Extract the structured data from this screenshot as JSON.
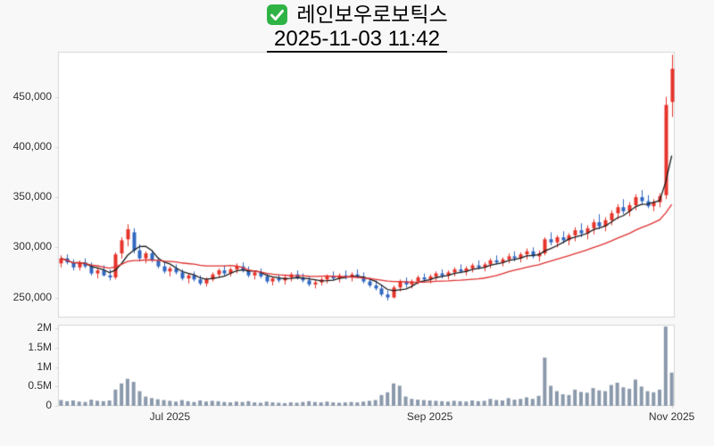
{
  "header": {
    "stock_name": "레인보우로보틱스",
    "timestamp": "2025-11-03 11:42",
    "checkbox_icon": "green-checkbox"
  },
  "colors": {
    "up": "#e6332a",
    "down": "#2f66c0",
    "ma_fast": "#1a1a1a",
    "ma_slow": "#e03030",
    "volume_bar": "#8b99ac",
    "axis_text": "#333333",
    "pane_border": "#d6d6d6",
    "pane_bg": "#ffffff",
    "page_bg": "#f8f8f8",
    "checkbox_green": "#2fb344"
  },
  "chart_data": {
    "type": "candlestick",
    "title": "레인보우로보틱스",
    "subtitle": "2025-11-03 11:42",
    "grid": false,
    "legend": "none",
    "price_axis": {
      "ticks": [
        250000,
        300000,
        350000,
        400000,
        450000
      ],
      "tick_labels": [
        "250,000",
        "300,000",
        "350,000",
        "400,000",
        "450,000"
      ],
      "range": [
        230000,
        495000
      ]
    },
    "volume_axis": {
      "ticks": [
        0,
        500000,
        1000000,
        1500000,
        2000000
      ],
      "tick_labels": [
        "0",
        "0.5M",
        "1M",
        "1.5M",
        "2M"
      ],
      "range": [
        0,
        2100000
      ]
    },
    "x_axis": {
      "tick_indices": [
        18,
        61,
        101
      ],
      "tick_labels": [
        "Jul 2025",
        "Sep 2025",
        "Nov 2025"
      ]
    },
    "overlays": [
      {
        "name": "MA5",
        "color_key": "ma_fast",
        "window": 5
      },
      {
        "name": "MA20",
        "color_key": "ma_slow",
        "window": 20
      }
    ],
    "candle_fields": [
      "date",
      "open",
      "high",
      "low",
      "close",
      "volume"
    ],
    "candles": [
      [
        "2025-06-05",
        284000,
        292000,
        280000,
        289000,
        150000
      ],
      [
        "2025-06-06",
        289000,
        293000,
        283000,
        285000,
        120000
      ],
      [
        "2025-06-09",
        285000,
        288000,
        277000,
        280000,
        140000
      ],
      [
        "2025-06-10",
        280000,
        287000,
        277000,
        285000,
        110000
      ],
      [
        "2025-06-11",
        285000,
        289000,
        279000,
        281000,
        100000
      ],
      [
        "2025-06-12",
        281000,
        285000,
        272000,
        274000,
        160000
      ],
      [
        "2025-06-13",
        274000,
        280000,
        269000,
        277000,
        130000
      ],
      [
        "2025-06-16",
        277000,
        282000,
        271000,
        272000,
        120000
      ],
      [
        "2025-06-17",
        272000,
        278000,
        267000,
        270000,
        140000
      ],
      [
        "2025-06-18",
        270000,
        295000,
        268000,
        293000,
        420000
      ],
      [
        "2025-06-19",
        294000,
        310000,
        289000,
        307000,
        580000
      ],
      [
        "2025-06-20",
        308000,
        323000,
        301000,
        318000,
        700000
      ],
      [
        "2025-06-23",
        315000,
        319000,
        294000,
        297000,
        620000
      ],
      [
        "2025-06-24",
        297000,
        303000,
        286000,
        289000,
        380000
      ],
      [
        "2025-06-25",
        289000,
        296000,
        284000,
        294000,
        240000
      ],
      [
        "2025-06-26",
        294000,
        297000,
        285000,
        287000,
        200000
      ],
      [
        "2025-06-27",
        287000,
        290000,
        279000,
        281000,
        170000
      ],
      [
        "2025-06-30",
        281000,
        285000,
        274000,
        276000,
        150000
      ],
      [
        "2025-07-01",
        276000,
        281000,
        271000,
        279000,
        130000
      ],
      [
        "2025-07-02",
        279000,
        283000,
        273000,
        275000,
        110000
      ],
      [
        "2025-07-03",
        275000,
        278000,
        267000,
        269000,
        150000
      ],
      [
        "2025-07-04",
        269000,
        274000,
        264000,
        272000,
        120000
      ],
      [
        "2025-07-07",
        272000,
        276000,
        266000,
        268000,
        100000
      ],
      [
        "2025-07-08",
        268000,
        272000,
        262000,
        264000,
        140000
      ],
      [
        "2025-07-09",
        264000,
        270000,
        261000,
        268000,
        110000
      ],
      [
        "2025-07-10",
        268000,
        275000,
        266000,
        273000,
        130000
      ],
      [
        "2025-07-11",
        273000,
        279000,
        270000,
        277000,
        120000
      ],
      [
        "2025-07-14",
        277000,
        282000,
        272000,
        274000,
        100000
      ],
      [
        "2025-07-15",
        274000,
        280000,
        271000,
        278000,
        90000
      ],
      [
        "2025-07-16",
        278000,
        284000,
        274000,
        281000,
        110000
      ],
      [
        "2025-07-17",
        281000,
        285000,
        275000,
        277000,
        100000
      ],
      [
        "2025-07-18",
        277000,
        281000,
        270000,
        272000,
        120000
      ],
      [
        "2025-07-21",
        272000,
        277000,
        268000,
        275000,
        90000
      ],
      [
        "2025-07-22",
        275000,
        279000,
        269000,
        271000,
        80000
      ],
      [
        "2025-07-23",
        271000,
        274000,
        264000,
        266000,
        110000
      ],
      [
        "2025-07-24",
        266000,
        271000,
        262000,
        269000,
        90000
      ],
      [
        "2025-07-25",
        269000,
        273000,
        265000,
        267000,
        80000
      ],
      [
        "2025-07-28",
        267000,
        272000,
        263000,
        270000,
        70000
      ],
      [
        "2025-07-29",
        270000,
        275000,
        266000,
        273000,
        90000
      ],
      [
        "2025-07-30",
        273000,
        277000,
        268000,
        270000,
        80000
      ],
      [
        "2025-07-31",
        270000,
        274000,
        265000,
        267000,
        100000
      ],
      [
        "2025-08-01",
        267000,
        271000,
        261000,
        263000,
        120000
      ],
      [
        "2025-08-04",
        263000,
        268000,
        259000,
        265000,
        100000
      ],
      [
        "2025-08-05",
        265000,
        270000,
        262000,
        268000,
        90000
      ],
      [
        "2025-08-06",
        268000,
        273000,
        264000,
        271000,
        110000
      ],
      [
        "2025-08-07",
        271000,
        276000,
        267000,
        269000,
        90000
      ],
      [
        "2025-08-08",
        269000,
        274000,
        265000,
        272000,
        80000
      ],
      [
        "2025-08-11",
        272000,
        277000,
        268000,
        270000,
        90000
      ],
      [
        "2025-08-12",
        270000,
        275000,
        266000,
        273000,
        100000
      ],
      [
        "2025-08-13",
        273000,
        278000,
        269000,
        271000,
        90000
      ],
      [
        "2025-08-14",
        271000,
        275000,
        264000,
        266000,
        110000
      ],
      [
        "2025-08-18",
        266000,
        270000,
        260000,
        262000,
        130000
      ],
      [
        "2025-08-19",
        262000,
        267000,
        257000,
        259000,
        150000
      ],
      [
        "2025-08-20",
        259000,
        263000,
        251000,
        253000,
        280000
      ],
      [
        "2025-08-21",
        253000,
        257000,
        247000,
        250000,
        350000
      ],
      [
        "2025-08-22",
        250000,
        262000,
        249000,
        260000,
        580000
      ],
      [
        "2025-08-25",
        260000,
        268000,
        256000,
        266000,
        520000
      ],
      [
        "2025-08-26",
        266000,
        270000,
        260000,
        263000,
        240000
      ],
      [
        "2025-08-27",
        263000,
        268000,
        259000,
        266000,
        180000
      ],
      [
        "2025-08-28",
        266000,
        272000,
        263000,
        270000,
        160000
      ],
      [
        "2025-08-29",
        270000,
        274000,
        265000,
        268000,
        150000
      ],
      [
        "2025-09-01",
        268000,
        273000,
        264000,
        271000,
        140000
      ],
      [
        "2025-09-02",
        271000,
        276000,
        267000,
        274000,
        130000
      ],
      [
        "2025-09-03",
        274000,
        278000,
        269000,
        272000,
        120000
      ],
      [
        "2025-09-04",
        272000,
        277000,
        268000,
        275000,
        110000
      ],
      [
        "2025-09-05",
        275000,
        280000,
        271000,
        278000,
        130000
      ],
      [
        "2025-09-08",
        278000,
        283000,
        274000,
        276000,
        120000
      ],
      [
        "2025-09-09",
        276000,
        281000,
        272000,
        279000,
        110000
      ],
      [
        "2025-09-10",
        279000,
        284000,
        275000,
        282000,
        140000
      ],
      [
        "2025-09-11",
        282000,
        287000,
        278000,
        280000,
        120000
      ],
      [
        "2025-09-12",
        280000,
        285000,
        276000,
        283000,
        130000
      ],
      [
        "2025-09-15",
        283000,
        289000,
        279000,
        287000,
        180000
      ],
      [
        "2025-09-16",
        287000,
        292000,
        283000,
        285000,
        150000
      ],
      [
        "2025-09-17",
        285000,
        290000,
        281000,
        288000,
        140000
      ],
      [
        "2025-09-18",
        288000,
        294000,
        284000,
        291000,
        200000
      ],
      [
        "2025-09-19",
        291000,
        296000,
        286000,
        289000,
        160000
      ],
      [
        "2025-09-22",
        289000,
        295000,
        285000,
        293000,
        180000
      ],
      [
        "2025-09-23",
        293000,
        299000,
        288000,
        296000,
        220000
      ],
      [
        "2025-09-24",
        296000,
        300000,
        289000,
        291000,
        180000
      ],
      [
        "2025-09-25",
        291000,
        297000,
        286000,
        294000,
        260000
      ],
      [
        "2025-09-26",
        294000,
        310000,
        292000,
        308000,
        1250000
      ],
      [
        "2025-09-29",
        308000,
        315000,
        302000,
        305000,
        520000
      ],
      [
        "2025-09-30",
        305000,
        312000,
        300000,
        310000,
        380000
      ],
      [
        "2025-10-01",
        310000,
        316000,
        304000,
        307000,
        300000
      ],
      [
        "2025-10-02",
        307000,
        314000,
        302000,
        312000,
        280000
      ],
      [
        "2025-10-10",
        312000,
        320000,
        306000,
        317000,
        420000
      ],
      [
        "2025-10-13",
        317000,
        324000,
        310000,
        314000,
        360000
      ],
      [
        "2025-10-14",
        314000,
        322000,
        308000,
        319000,
        340000
      ],
      [
        "2025-10-15",
        319000,
        328000,
        313000,
        325000,
        460000
      ],
      [
        "2025-10-16",
        325000,
        333000,
        318000,
        321000,
        400000
      ],
      [
        "2025-10-17",
        321000,
        330000,
        316000,
        327000,
        380000
      ],
      [
        "2025-10-20",
        327000,
        337000,
        322000,
        334000,
        540000
      ],
      [
        "2025-10-21",
        334000,
        343000,
        328000,
        340000,
        600000
      ],
      [
        "2025-10-22",
        340000,
        348000,
        333000,
        336000,
        480000
      ],
      [
        "2025-10-23",
        336000,
        345000,
        331000,
        342000,
        440000
      ],
      [
        "2025-10-24",
        342000,
        353000,
        337000,
        350000,
        680000
      ],
      [
        "2025-10-27",
        350000,
        357000,
        343000,
        346000,
        500000
      ],
      [
        "2025-10-28",
        346000,
        352000,
        339000,
        341000,
        380000
      ],
      [
        "2025-10-29",
        341000,
        348000,
        336000,
        345000,
        350000
      ],
      [
        "2025-10-30",
        345000,
        354000,
        340000,
        351000,
        420000
      ],
      [
        "2025-10-31",
        352000,
        450000,
        348000,
        442000,
        2050000
      ],
      [
        "2025-11-03",
        445000,
        492000,
        430000,
        478000,
        860000
      ]
    ]
  }
}
